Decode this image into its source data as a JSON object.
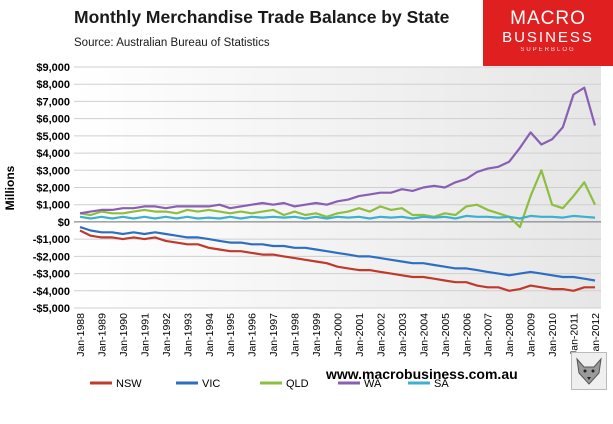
{
  "title": "Monthly Merchandise Trade Balance by State",
  "source": "Source:  Australian Bureau of Statistics",
  "logo": {
    "line1": "MACRO",
    "line2": "BUSINESS",
    "line3": "SUPERBLOG"
  },
  "website": "www.macrobusiness.com.au",
  "chart_data": {
    "type": "line",
    "title": "Monthly Merchandise Trade Balance by State",
    "ylabel": "Millions",
    "xlabel": "",
    "ylim": [
      -5000,
      9000
    ],
    "yticks": [
      -5000,
      -4000,
      -3000,
      -2000,
      -1000,
      0,
      1000,
      2000,
      3000,
      4000,
      5000,
      6000,
      7000,
      8000,
      9000
    ],
    "ytick_labels": [
      "-$5,000",
      "-$4,000",
      "-$3,000",
      "-$2,000",
      "-$1,000",
      "$0",
      "$1,000",
      "$2,000",
      "$3,000",
      "$4,000",
      "$5,000",
      "$6,000",
      "$7,000",
      "$8,000",
      "$9,000"
    ],
    "xtick_labels": [
      "Jan-1988",
      "Jan-1989",
      "Jan-1990",
      "Jan-1991",
      "Jan-1992",
      "Jan-1993",
      "Jan-1994",
      "Jan-1995",
      "Jan-1996",
      "Jan-1997",
      "Jan-1998",
      "Jan-1999",
      "Jan-2000",
      "Jan-2001",
      "Jan-2002",
      "Jan-2003",
      "Jan-2004",
      "Jan-2005",
      "Jan-2006",
      "Jan-2007",
      "Jan-2008",
      "Jan-2009",
      "Jan-2010",
      "Jan-2011",
      "Jan-2012"
    ],
    "x": [
      "Jan-1988",
      "Jul-1988",
      "Jan-1989",
      "Jul-1989",
      "Jan-1990",
      "Jul-1990",
      "Jan-1991",
      "Jul-1991",
      "Jan-1992",
      "Jul-1992",
      "Jan-1993",
      "Jul-1993",
      "Jan-1994",
      "Jul-1994",
      "Jan-1995",
      "Jul-1995",
      "Jan-1996",
      "Jul-1996",
      "Jan-1997",
      "Jul-1997",
      "Jan-1998",
      "Jul-1998",
      "Jan-1999",
      "Jul-1999",
      "Jan-2000",
      "Jul-2000",
      "Jan-2001",
      "Jul-2001",
      "Jan-2002",
      "Jul-2002",
      "Jan-2003",
      "Jul-2003",
      "Jan-2004",
      "Jul-2004",
      "Jan-2005",
      "Jul-2005",
      "Jan-2006",
      "Jul-2006",
      "Jan-2007",
      "Jul-2007",
      "Jan-2008",
      "Jul-2008",
      "Jan-2009",
      "Jul-2009",
      "Jan-2010",
      "Jul-2010",
      "Jan-2011",
      "Jul-2011",
      "Jan-2012"
    ],
    "legend_position": "bottom",
    "grid": true,
    "series": [
      {
        "name": "NSW",
        "color": "#c0392b",
        "values": [
          -500,
          -800,
          -900,
          -900,
          -1000,
          -900,
          -1000,
          -900,
          -1100,
          -1200,
          -1300,
          -1300,
          -1500,
          -1600,
          -1700,
          -1700,
          -1800,
          -1900,
          -1900,
          -2000,
          -2100,
          -2200,
          -2300,
          -2400,
          -2600,
          -2700,
          -2800,
          -2800,
          -2900,
          -3000,
          -3100,
          -3200,
          -3200,
          -3300,
          -3400,
          -3500,
          -3500,
          -3700,
          -3800,
          -3800,
          -4000,
          -3900,
          -3700,
          -3800,
          -3900,
          -3900,
          -4000,
          -3800,
          -3800
        ]
      },
      {
        "name": "VIC",
        "color": "#2e6ec2",
        "values": [
          -300,
          -500,
          -600,
          -600,
          -700,
          -600,
          -700,
          -600,
          -700,
          -800,
          -900,
          -900,
          -1000,
          -1100,
          -1200,
          -1200,
          -1300,
          -1300,
          -1400,
          -1400,
          -1500,
          -1500,
          -1600,
          -1700,
          -1800,
          -1900,
          -2000,
          -2000,
          -2100,
          -2200,
          -2300,
          -2400,
          -2400,
          -2500,
          -2600,
          -2700,
          -2700,
          -2800,
          -2900,
          -3000,
          -3100,
          -3000,
          -2900,
          -3000,
          -3100,
          -3200,
          -3200,
          -3300,
          -3400
        ]
      },
      {
        "name": "QLD",
        "color": "#8cbf3f",
        "values": [
          500,
          400,
          600,
          500,
          500,
          600,
          700,
          600,
          600,
          500,
          700,
          600,
          700,
          600,
          500,
          600,
          500,
          600,
          700,
          400,
          600,
          400,
          500,
          300,
          500,
          600,
          800,
          600,
          900,
          700,
          800,
          400,
          400,
          300,
          500,
          400,
          900,
          1000,
          700,
          500,
          300,
          -300,
          1500,
          3000,
          1000,
          800,
          1500,
          2300,
          1000
        ]
      },
      {
        "name": "WA",
        "color": "#8a5fb3",
        "values": [
          500,
          600,
          700,
          700,
          800,
          800,
          900,
          900,
          800,
          900,
          900,
          900,
          900,
          1000,
          800,
          900,
          1000,
          1100,
          1000,
          1100,
          900,
          1000,
          1100,
          1000,
          1200,
          1300,
          1500,
          1600,
          1700,
          1700,
          1900,
          1800,
          2000,
          2100,
          2000,
          2300,
          2500,
          2900,
          3100,
          3200,
          3500,
          4300,
          5200,
          4500,
          4800,
          5500,
          7400,
          7800,
          5600
        ]
      },
      {
        "name": "SA",
        "color": "#3bb0cf",
        "values": [
          300,
          200,
          300,
          200,
          300,
          200,
          300,
          200,
          300,
          200,
          300,
          200,
          250,
          200,
          300,
          200,
          300,
          250,
          300,
          250,
          300,
          200,
          300,
          200,
          300,
          250,
          300,
          200,
          300,
          250,
          300,
          200,
          300,
          250,
          300,
          200,
          350,
          300,
          300,
          250,
          300,
          200,
          350,
          300,
          300,
          250,
          350,
          300,
          250
        ]
      }
    ]
  }
}
